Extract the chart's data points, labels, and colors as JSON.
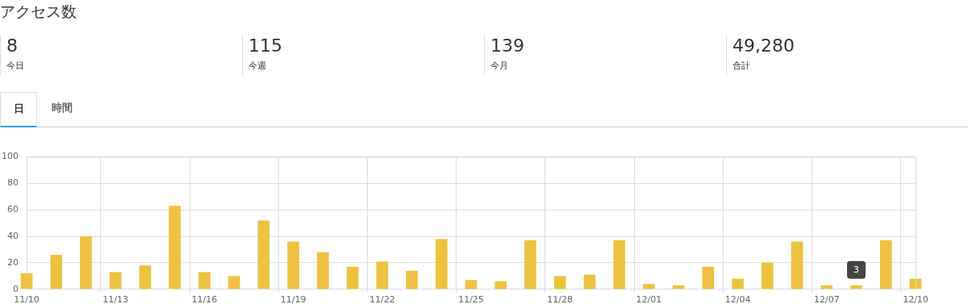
{
  "chart_data": [
    {
      "type": "other",
      "title": "アクセス数",
      "annotations": [
        "8",
        "今日",
        "115",
        "今週",
        "139",
        "今月",
        "49,280",
        "合計",
        "日",
        "時間"
      ]
    },
    {
      "type": "bar",
      "categories": [
        "11/10",
        null,
        null,
        "11/13",
        null,
        null,
        "11/16",
        null,
        null,
        "11/19",
        null,
        null,
        "11/22",
        null,
        null,
        "11/25",
        null,
        null,
        "11/28",
        null,
        null,
        "12/01",
        null,
        null,
        "12/04",
        null,
        null,
        "12/07",
        null,
        null,
        "12/10"
      ],
      "values": [
        12,
        26,
        40,
        13,
        18,
        63,
        13,
        10,
        52,
        36,
        28,
        17,
        21,
        14,
        38,
        7,
        6,
        37,
        10,
        11,
        37,
        4,
        3,
        17,
        8,
        20,
        36,
        3,
        3,
        37,
        8
      ],
      "color": "#edc240",
      "ylim": [
        0,
        100
      ],
      "yticks": [
        0,
        20,
        40,
        60,
        80,
        100
      ],
      "grid": true,
      "annotations": [
        {
          "text": "3",
          "y": 3
        }
      ]
    }
  ]
}
